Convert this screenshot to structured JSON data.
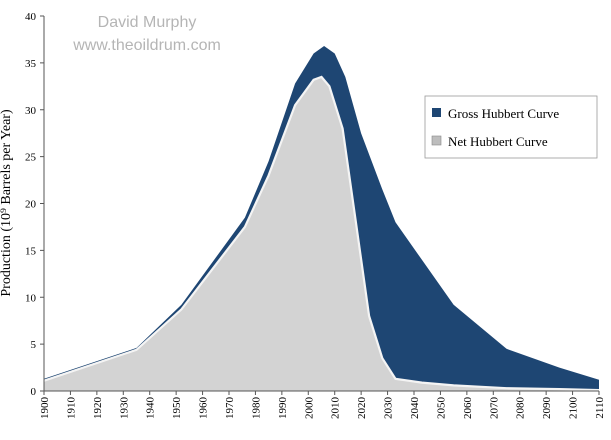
{
  "watermark": {
    "line1": "David Murphy",
    "line2": "www.theoildrum.com"
  },
  "chart_data": {
    "type": "area",
    "title": "",
    "xlabel": "",
    "ylabel": "Production (10⁹ Barrels per Year)",
    "xlim": [
      1900,
      2110
    ],
    "ylim": [
      0,
      40
    ],
    "x_ticks": [
      1900,
      1910,
      1920,
      1930,
      1940,
      1950,
      1960,
      1970,
      1980,
      1990,
      2000,
      2010,
      2020,
      2030,
      2040,
      2050,
      2060,
      2070,
      2080,
      2090,
      2100,
      2110
    ],
    "y_ticks": [
      0,
      5,
      10,
      15,
      20,
      25,
      30,
      35,
      40
    ],
    "legend_position": "right",
    "grid": false,
    "series": [
      {
        "name": "Gross Hubbert Curve",
        "color": "#1e4673",
        "x": [
          1900,
          1935,
          1952,
          1976,
          1985,
          1995,
          2002,
          2006,
          2010,
          2014,
          2020,
          2028,
          2033,
          2043,
          2055,
          2075,
          2095,
          2110
        ],
        "y": [
          1.3,
          4.6,
          9.2,
          18.5,
          24.5,
          32.8,
          36.0,
          36.8,
          36.0,
          33.5,
          27.5,
          21.5,
          18.0,
          14.0,
          9.2,
          4.5,
          2.5,
          1.2
        ]
      },
      {
        "name": "Net Hubbert Curve",
        "color": "#d3d3d3",
        "x": [
          1900,
          1935,
          1952,
          1976,
          1985,
          1995,
          2002,
          2005,
          2008,
          2013,
          2018,
          2023,
          2028,
          2033,
          2043,
          2055,
          2075,
          2095,
          2110
        ],
        "y": [
          1.1,
          4.4,
          8.7,
          17.5,
          23.0,
          30.5,
          33.2,
          33.5,
          32.5,
          28.0,
          18.0,
          8.0,
          3.5,
          1.3,
          0.9,
          0.6,
          0.3,
          0.2,
          0.1
        ]
      }
    ]
  }
}
